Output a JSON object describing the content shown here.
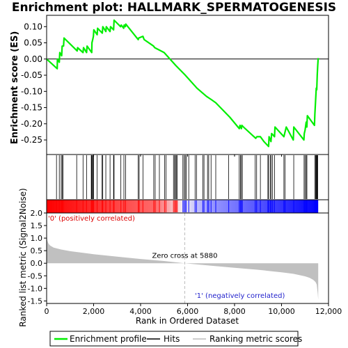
{
  "chart_data": {
    "type": "line",
    "title": "Enrichment plot: HALLMARK_SPERMATOGENESIS",
    "es_panel": {
      "ylabel": "Enrichment score (ES)",
      "yticks": [
        0.1,
        0.05,
        0.0,
        -0.05,
        -0.1,
        -0.15,
        -0.2,
        -0.25
      ],
      "ytick_labels": [
        "0.10",
        "0.05",
        "0.00",
        "-0.05",
        "-0.10",
        "-0.15",
        "-0.20",
        "-0.25"
      ],
      "ylim": [
        -0.295,
        0.135
      ],
      "series": [
        {
          "name": "Enrichment profile",
          "color": "#00ee00",
          "x": [
            0,
            450,
            460,
            540,
            560,
            640,
            660,
            720,
            740,
            1300,
            1320,
            1550,
            1570,
            1700,
            1720,
            1920,
            1930,
            1960,
            1990,
            2010,
            2150,
            2170,
            2370,
            2390,
            2520,
            2540,
            2700,
            2720,
            2850,
            2870,
            3150,
            3180,
            3280,
            3300,
            3350,
            3370,
            3900,
            3920,
            4100,
            4150,
            4550,
            4600,
            5000,
            5500,
            5880,
            6400,
            6800,
            6900,
            7000,
            7200,
            7800,
            8200,
            8230,
            8290,
            8310,
            8380,
            8900,
            8950,
            9100,
            9250,
            9450,
            9470,
            9550,
            9580,
            9700,
            9720,
            10100,
            10150,
            10200,
            10500,
            10520,
            10950,
            10970,
            11000,
            11050,
            11080,
            11100,
            11400,
            11420,
            11450,
            11480,
            11500,
            11520,
            11540,
            11560
          ],
          "y": [
            0.0,
            -0.03,
            0.0,
            -0.01,
            0.02,
            0.01,
            0.04,
            0.04,
            0.065,
            0.025,
            0.035,
            0.02,
            0.035,
            0.02,
            0.04,
            0.02,
            0.05,
            0.06,
            0.07,
            0.09,
            0.075,
            0.095,
            0.08,
            0.1,
            0.085,
            0.1,
            0.085,
            0.1,
            0.09,
            0.12,
            0.1,
            0.105,
            0.095,
            0.105,
            0.1,
            0.108,
            0.06,
            0.065,
            0.07,
            0.06,
            0.04,
            0.035,
            0.02,
            -0.02,
            -0.048,
            -0.09,
            -0.115,
            -0.12,
            -0.125,
            -0.135,
            -0.18,
            -0.215,
            -0.205,
            -0.215,
            -0.205,
            -0.21,
            -0.245,
            -0.24,
            -0.24,
            -0.255,
            -0.27,
            -0.24,
            -0.255,
            -0.23,
            -0.24,
            -0.21,
            -0.24,
            -0.225,
            -0.21,
            -0.25,
            -0.21,
            -0.25,
            -0.23,
            -0.22,
            -0.195,
            -0.21,
            -0.175,
            -0.205,
            -0.17,
            -0.13,
            -0.09,
            -0.095,
            -0.05,
            -0.02,
            0.003
          ]
        }
      ]
    },
    "hits_x": [
      420,
      540,
      620,
      660,
      700,
      1280,
      1550,
      1700,
      1900,
      1920,
      1950,
      1980,
      2000,
      2150,
      2360,
      2390,
      2520,
      2700,
      2850,
      2870,
      3160,
      3290,
      3360,
      3900,
      3940,
      4100,
      4560,
      4620,
      4800,
      5020,
      5080,
      5400,
      5450,
      5480,
      5520,
      5560,
      5800,
      5850,
      5900,
      5940,
      6050,
      6320,
      6380,
      6650,
      6700,
      6850,
      6900,
      7000,
      7200,
      7750,
      8200,
      8250,
      8290,
      8330,
      8880,
      8940,
      9100,
      9420,
      9450,
      9520,
      9560,
      9620,
      9700,
      10100,
      10150,
      10520,
      10960,
      11000,
      11050,
      11080,
      11420,
      11450,
      11480,
      11500,
      11520,
      11540
    ],
    "rank_panel": {
      "ylabel": "Ranked list metric (Signal2Noise)",
      "yticks": [
        2.0,
        1.5,
        1.0,
        0.5,
        0.0,
        -0.5,
        -1.0,
        -1.5
      ],
      "ytick_labels": [
        "2.0",
        "1.5",
        "1.0",
        "0.5",
        "0.0",
        "-0.5",
        "-1.0",
        "-1.5"
      ],
      "ylim": [
        -1.6,
        2.0
      ],
      "metric_x": [
        0,
        30,
        80,
        150,
        300,
        600,
        1000,
        2000,
        3000,
        4000,
        5000,
        5880,
        7000,
        8000,
        9000,
        10000,
        10500,
        11000,
        11200,
        11350,
        11450,
        11500,
        11540,
        11560
      ],
      "metric_y": [
        1.1,
        0.9,
        0.78,
        0.7,
        0.62,
        0.55,
        0.48,
        0.36,
        0.26,
        0.17,
        0.09,
        0.0,
        -0.1,
        -0.18,
        -0.26,
        -0.36,
        -0.42,
        -0.52,
        -0.58,
        -0.66,
        -0.75,
        -0.85,
        -1.2,
        -1.45
      ],
      "zero_cross_x": 5880,
      "zero_cross_label": "Zero cross at 5880",
      "positive_label": "'0' (positively correlated)",
      "negative_label": "'1' (negatively correlated)"
    },
    "xlabel": "Rank in Ordered Dataset",
    "xticks": [
      0,
      2000,
      4000,
      6000,
      8000,
      10000,
      12000
    ],
    "xtick_labels": [
      "0",
      "2,000",
      "4,000",
      "6,000",
      "8,000",
      "10,000",
      "12,000"
    ],
    "xlim": [
      0,
      12000
    ],
    "n_genes": 11560,
    "legend": {
      "position": "bottom",
      "items": [
        {
          "label": "Enrichment profile",
          "color": "#00ee00"
        },
        {
          "label": "Hits",
          "color": "#000000"
        },
        {
          "label": "Ranking metric scores",
          "color": "#bbbbbb"
        }
      ]
    },
    "colors": {
      "frame": "#000000",
      "grid_background": "#ffffff",
      "positive": "#ff0000",
      "negative": "#0000ff",
      "metric_fill": "#c0c0c0",
      "zero_line": "#bbbbbb",
      "positive_label": "#dd0000",
      "negative_label": "#2222cc"
    }
  }
}
